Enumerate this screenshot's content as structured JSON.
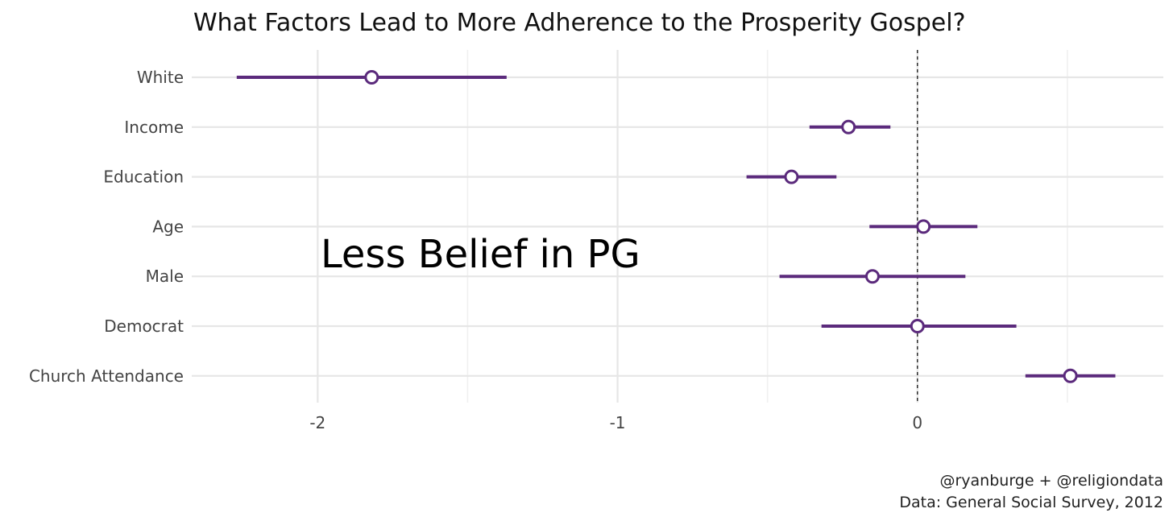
{
  "chart_data": {
    "type": "coefficient-plot",
    "title": "What Factors Lead to More Adherence to the Prosperity Gospel?",
    "xlabel": "",
    "ylabel": "",
    "xlim": [
      -2.42,
      0.82
    ],
    "x_ticks": [
      -2,
      -1,
      0
    ],
    "x_tick_labels": [
      "-2",
      "-1",
      "0"
    ],
    "reference_line": 0,
    "grid": true,
    "color": "#5b2a7c",
    "series": [
      {
        "name": "White",
        "estimate": -1.82,
        "lower": -2.27,
        "upper": -1.37
      },
      {
        "name": "Income",
        "estimate": -0.23,
        "lower": -0.36,
        "upper": -0.09
      },
      {
        "name": "Education",
        "estimate": -0.42,
        "lower": -0.57,
        "upper": -0.27
      },
      {
        "name": "Age",
        "estimate": 0.02,
        "lower": -0.16,
        "upper": 0.2
      },
      {
        "name": "Male",
        "estimate": -0.15,
        "lower": -0.46,
        "upper": 0.16
      },
      {
        "name": "Democrat",
        "estimate": 0.0,
        "lower": -0.32,
        "upper": 0.33
      },
      {
        "name": "Church Attendance",
        "estimate": 0.51,
        "lower": 0.36,
        "upper": 0.66
      }
    ],
    "annotation": "Less Belief in PG",
    "caption": [
      "@ryanburge + @religiondata",
      "Data: General Social Survey, 2012"
    ]
  }
}
